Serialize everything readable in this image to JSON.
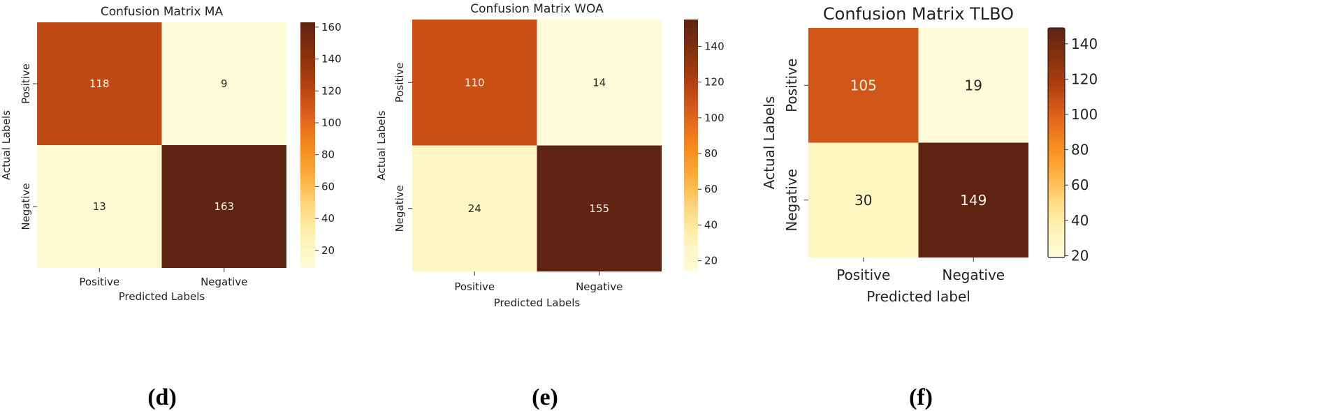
{
  "colors": {
    "colormap": [
      "#fffbd8",
      "#fff3b8",
      "#fed880",
      "#fdad3c",
      "#f4871e",
      "#dd5f1c",
      "#b13f10",
      "#85300e",
      "#5e2411"
    ],
    "text_dark": "#262626",
    "text_light": "#fbf3e6"
  },
  "chart_data": [
    {
      "type": "heatmap",
      "panel_label": "(d)",
      "title": "Confusion Matrix MA",
      "xlabel": "Predicted Labels",
      "ylabel": "Actual Labels",
      "x_categories": [
        "Positive",
        "Negative"
      ],
      "y_categories": [
        "Positive",
        "Negative"
      ],
      "values": [
        [
          118,
          9
        ],
        [
          13,
          163
        ]
      ],
      "colorbar": {
        "min": 9,
        "max": 163,
        "ticks": [
          20,
          40,
          60,
          80,
          100,
          120,
          140,
          160
        ]
      }
    },
    {
      "type": "heatmap",
      "panel_label": "(e)",
      "title": "Confusion Matrix WOA",
      "xlabel": "Predicted Labels",
      "ylabel": "Actual Labels",
      "x_categories": [
        "Positive",
        "Negative"
      ],
      "y_categories": [
        "Positive",
        "Negative"
      ],
      "values": [
        [
          110,
          14
        ],
        [
          24,
          155
        ]
      ],
      "colorbar": {
        "min": 14,
        "max": 155,
        "ticks": [
          20,
          40,
          60,
          80,
          100,
          120,
          140
        ]
      }
    },
    {
      "type": "heatmap",
      "panel_label": "(f)",
      "title": "Confusion Matrix TLBO",
      "xlabel": "Predicted label",
      "ylabel": "Actual Labels",
      "x_categories": [
        "Positive",
        "Negative"
      ],
      "y_categories": [
        "Positive",
        "Negative"
      ],
      "values": [
        [
          105,
          19
        ],
        [
          30,
          149
        ]
      ],
      "colorbar": {
        "min": 19,
        "max": 149,
        "ticks": [
          20,
          40,
          60,
          80,
          100,
          120,
          140
        ]
      }
    }
  ]
}
